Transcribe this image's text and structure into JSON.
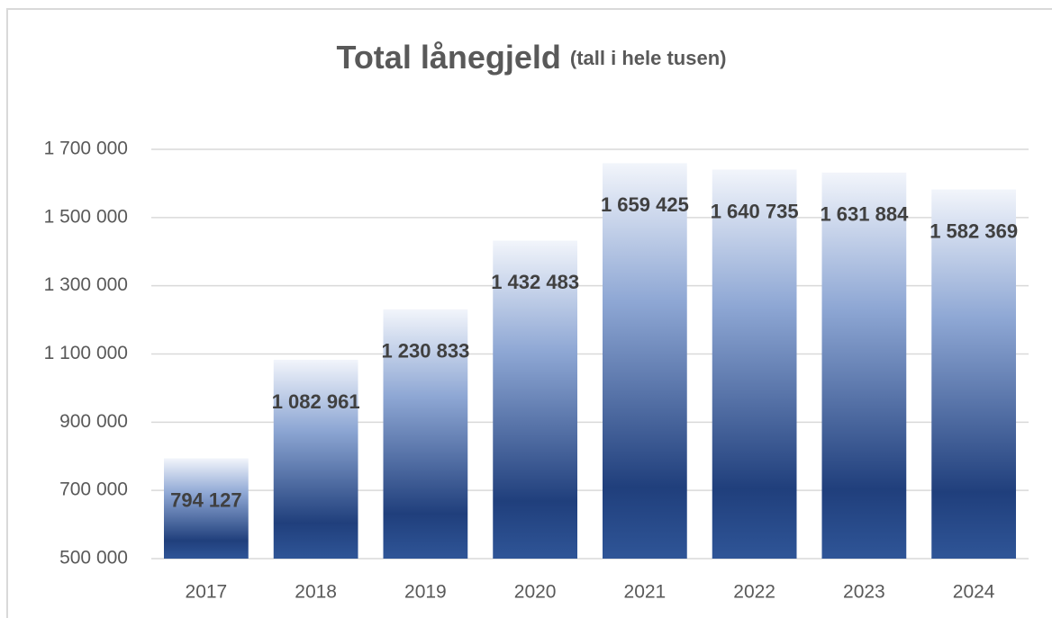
{
  "chart_data": {
    "type": "bar",
    "title": "Total lånegjeld",
    "subtitle": "(tall i hele tusen)",
    "categories": [
      "2017",
      "2018",
      "2019",
      "2020",
      "2021",
      "2022",
      "2023",
      "2024"
    ],
    "values": [
      794127,
      1082961,
      1230833,
      1432483,
      1659425,
      1640735,
      1631884,
      1582369
    ],
    "value_labels": [
      "794 127",
      "1 082 961",
      "1 230 833",
      "1 432 483",
      "1 659 425",
      "1 640 735",
      "1 631 884",
      "1 582 369"
    ],
    "color": "#2f5597",
    "ylim": [
      500000,
      1700000
    ],
    "yticks": [
      {
        "value": 500000,
        "label": "500 000"
      },
      {
        "value": 700000,
        "label": "700 000"
      },
      {
        "value": 900000,
        "label": "900 000"
      },
      {
        "value": 1100000,
        "label": "1 100 000"
      },
      {
        "value": 1300000,
        "label": "1 300 000"
      },
      {
        "value": 1500000,
        "label": "1 500 000"
      },
      {
        "value": 1700000,
        "label": "1 700 000"
      }
    ],
    "grid": true
  }
}
